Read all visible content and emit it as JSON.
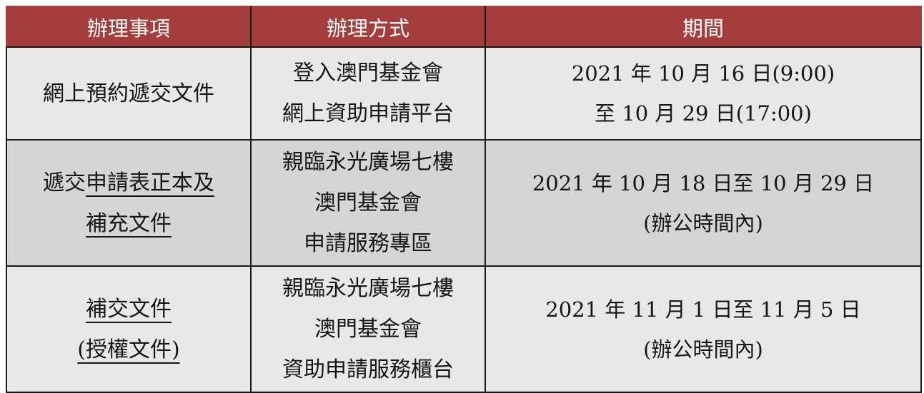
{
  "colors": {
    "header_bg": "#A43E3C",
    "header_text": "#FFFFFF",
    "row_bg_light": "#E8E8E6",
    "row_bg_dark": "#D5D5D3",
    "text": "#161616",
    "border": "#1A1A1A"
  },
  "table": {
    "columns": [
      {
        "key": "item",
        "label": "辦理事項"
      },
      {
        "key": "method",
        "label": "辦理方式"
      },
      {
        "key": "period",
        "label": "期間"
      }
    ],
    "rows": [
      {
        "item": {
          "l1": "網上預約遞交文件"
        },
        "method": {
          "l1": "登入澳門基金會",
          "l2": "網上資助申請平台"
        },
        "period": {
          "l1": "2021 年 10 月 16 日(9:00)",
          "l2": "至 10 月 29 日(17:00)"
        }
      },
      {
        "item": {
          "l1_plain": "遞交",
          "l1_underline": "申請表正本及",
          "l2_underline": "補充文件"
        },
        "method": {
          "l1": "親臨永光廣場七樓",
          "l2": "澳門基金會",
          "l3": "申請服務專區"
        },
        "period": {
          "l1": "2021 年 10 月 18 日至 10 月 29 日",
          "l2": "(辦公時間內)"
        }
      },
      {
        "item": {
          "l1_underline": "補交文件",
          "l2_underline": "(授權文件)"
        },
        "method": {
          "l1": "親臨永光廣場七樓",
          "l2": "澳門基金會",
          "l3": "資助申請服務櫃台"
        },
        "period": {
          "l1": "2021 年 11 月 1 日至 11 月 5 日",
          "l2": "(辦公時間內)"
        }
      }
    ]
  }
}
